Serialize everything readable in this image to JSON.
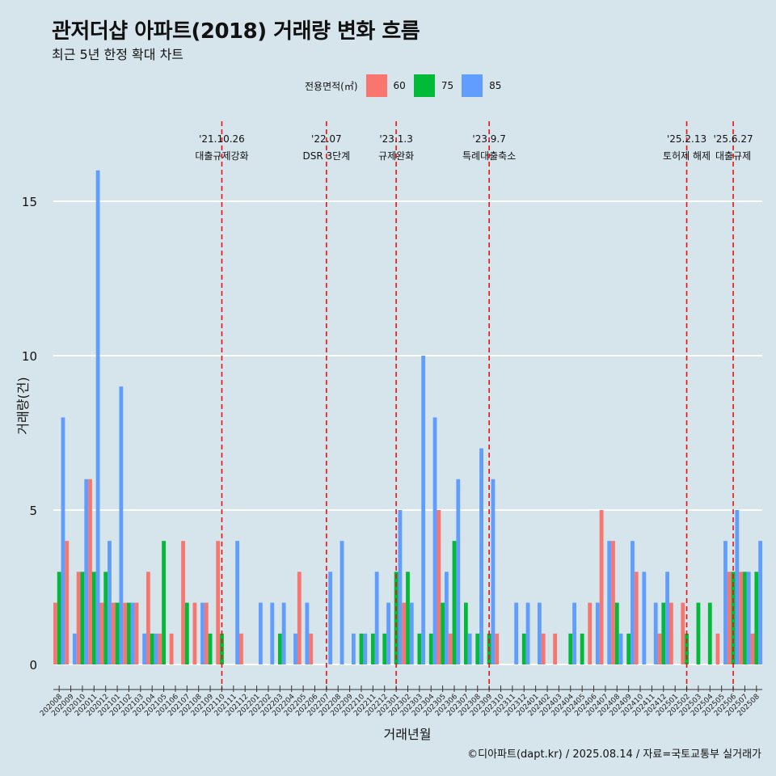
{
  "title": "관저더샵 아파트(2018) 거래량 변화 흐름",
  "subtitle": "최근 5년 한정 확대 차트",
  "caption": "©디아파트(dapt.kr) / 2025.08.14 / 자료=국토교통부 실거래가",
  "legend": {
    "title": "전용면적(㎡)",
    "items": [
      {
        "label": "60",
        "color": "#f8766d"
      },
      {
        "label": "75",
        "color": "#00ba38"
      },
      {
        "label": "85",
        "color": "#619cff"
      }
    ]
  },
  "chart_data": {
    "type": "bar",
    "xlabel": "거래년월",
    "ylabel": "거래량(건)",
    "ylim": [
      0,
      16
    ],
    "yticks": [
      0,
      5,
      10,
      15
    ],
    "grid": true,
    "legend_position": "top",
    "categories": [
      "202008",
      "202009",
      "202010",
      "202011",
      "202012",
      "202101",
      "202102",
      "202103",
      "202104",
      "202105",
      "202106",
      "202107",
      "202108",
      "202109",
      "202110",
      "202111",
      "202112",
      "202201",
      "202202",
      "202203",
      "202204",
      "202205",
      "202206",
      "202207",
      "202208",
      "202209",
      "202210",
      "202211",
      "202212",
      "202301",
      "202302",
      "202303",
      "202304",
      "202305",
      "202306",
      "202307",
      "202308",
      "202309",
      "202310",
      "202311",
      "202312",
      "202401",
      "202402",
      "202403",
      "202404",
      "202405",
      "202406",
      "202407",
      "202408",
      "202409",
      "202410",
      "202411",
      "202412",
      "202501",
      "202502",
      "202503",
      "202504",
      "202505",
      "202506",
      "202507",
      "202508"
    ],
    "series": [
      {
        "name": "60",
        "color": "#f8766d",
        "values": [
          2,
          4,
          3,
          6,
          2,
          2,
          2,
          2,
          3,
          1,
          1,
          4,
          2,
          2,
          4,
          0,
          1,
          0,
          0,
          0,
          0,
          3,
          1,
          0,
          0,
          0,
          0,
          0,
          0,
          0,
          2,
          0,
          0,
          5,
          1,
          0,
          0,
          0,
          1,
          0,
          0,
          0,
          1,
          1,
          0,
          0,
          2,
          5,
          4,
          0,
          3,
          0,
          1,
          2,
          2,
          0,
          0,
          1,
          3,
          3,
          1
        ]
      },
      {
        "name": "75",
        "color": "#00ba38",
        "values": [
          3,
          0,
          3,
          3,
          3,
          2,
          2,
          0,
          1,
          4,
          0,
          2,
          0,
          1,
          1,
          0,
          0,
          0,
          0,
          1,
          0,
          0,
          0,
          0,
          0,
          0,
          1,
          1,
          1,
          3,
          3,
          1,
          1,
          2,
          4,
          2,
          1,
          1,
          0,
          0,
          1,
          0,
          0,
          0,
          1,
          1,
          0,
          0,
          2,
          1,
          0,
          0,
          2,
          0,
          1,
          2,
          2,
          0,
          3,
          3,
          3
        ]
      },
      {
        "name": "85",
        "color": "#619cff",
        "values": [
          8,
          1,
          6,
          16,
          4,
          9,
          2,
          1,
          1,
          0,
          0,
          0,
          2,
          0,
          0,
          4,
          0,
          2,
          2,
          2,
          1,
          2,
          0,
          3,
          4,
          1,
          1,
          3,
          2,
          5,
          2,
          10,
          8,
          3,
          6,
          1,
          7,
          6,
          0,
          2,
          2,
          2,
          0,
          0,
          2,
          0,
          2,
          4,
          1,
          4,
          3,
          2,
          3,
          0,
          0,
          0,
          0,
          4,
          5,
          3,
          4
        ]
      }
    ],
    "events": [
      {
        "date": "'21.10.26",
        "label": "대출규제강화",
        "x": "202110"
      },
      {
        "date": "'22.07",
        "label": "DSR 3단계",
        "x": "202207"
      },
      {
        "date": "'23.1.3",
        "label": "규제완화",
        "x": "202301"
      },
      {
        "date": "'23.9.7",
        "label": "특례대출축소",
        "x": "202309"
      },
      {
        "date": "'25.2.13",
        "label": "토허제 해제",
        "x": "202502"
      },
      {
        "date": "'25.6.27",
        "label": "대출규제",
        "x": "202506"
      }
    ]
  }
}
